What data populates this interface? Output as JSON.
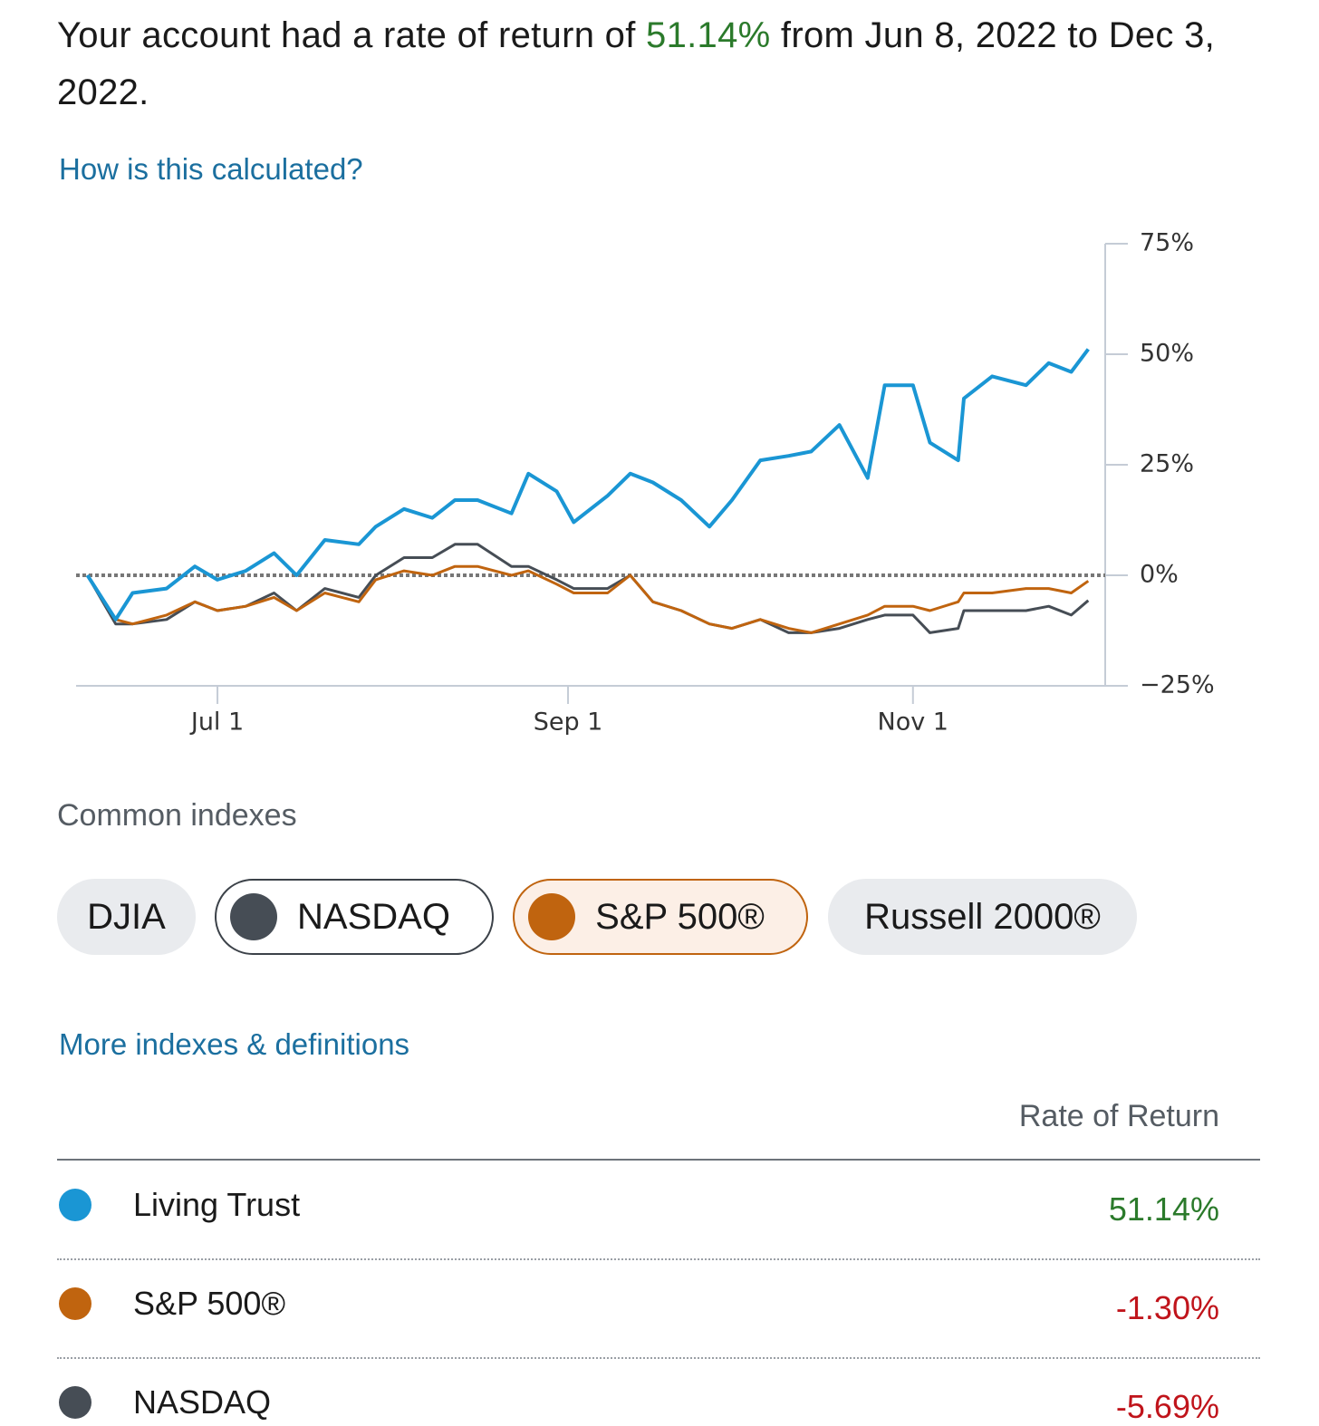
{
  "header": {
    "before": "Your account had a rate of return of ",
    "rate": "51.14%",
    "after": " from Jun 8, 2022 to Dec 3, 2022."
  },
  "calc_link": "How is this calculated?",
  "chart_data": {
    "type": "line",
    "x": [
      "2022-06-08",
      "2022-06-13",
      "2022-06-16",
      "2022-06-22",
      "2022-06-27",
      "2022-07-01",
      "2022-07-06",
      "2022-07-11",
      "2022-07-15",
      "2022-07-20",
      "2022-07-26",
      "2022-07-29",
      "2022-08-03",
      "2022-08-08",
      "2022-08-12",
      "2022-08-16",
      "2022-08-22",
      "2022-08-25",
      "2022-08-30",
      "2022-09-02",
      "2022-09-08",
      "2022-09-12",
      "2022-09-16",
      "2022-09-21",
      "2022-09-26",
      "2022-09-30",
      "2022-10-05",
      "2022-10-10",
      "2022-10-14",
      "2022-10-19",
      "2022-10-24",
      "2022-10-27",
      "2022-11-01",
      "2022-11-04",
      "2022-11-09",
      "2022-11-10",
      "2022-11-15",
      "2022-11-21",
      "2022-11-25",
      "2022-11-29",
      "2022-12-02"
    ],
    "series": [
      {
        "name": "Living Trust",
        "color": "#1a96d4",
        "values": [
          0,
          -10,
          -4,
          -3,
          2,
          -1,
          1,
          5,
          0,
          8,
          7,
          11,
          15,
          13,
          17,
          17,
          14,
          23,
          19,
          12,
          18,
          23,
          21,
          17,
          11,
          17,
          26,
          27,
          28,
          34,
          22,
          43,
          43,
          30,
          26,
          40,
          45,
          43,
          48,
          46,
          51.14
        ]
      },
      {
        "name": "S&P 500®",
        "color": "#c0640f",
        "values": [
          0,
          -10,
          -11,
          -9,
          -6,
          -8,
          -7,
          -5,
          -8,
          -4,
          -6,
          -1,
          1,
          0,
          2,
          2,
          0,
          1,
          -2,
          -4,
          -4,
          0,
          -6,
          -8,
          -11,
          -12,
          -10,
          -12,
          -13,
          -11,
          -9,
          -7,
          -7,
          -8,
          -6,
          -4,
          -4,
          -3,
          -3,
          -4,
          -1.3
        ]
      },
      {
        "name": "NASDAQ",
        "color": "#464d55",
        "values": [
          0,
          -11,
          -11,
          -10,
          -6,
          -8,
          -7,
          -4,
          -8,
          -3,
          -5,
          0,
          4,
          4,
          7,
          7,
          2,
          2,
          -1,
          -3,
          -3,
          0,
          -6,
          -8,
          -11,
          -12,
          -10,
          -13,
          -13,
          -12,
          -10,
          -9,
          -9,
          -13,
          -12,
          -8,
          -8,
          -8,
          -7,
          -9,
          -5.69
        ]
      }
    ],
    "xlim": [
      "2022-06-06",
      "2022-12-05"
    ],
    "xticks": [
      {
        "value": "2022-07-01",
        "label": "Jul 1"
      },
      {
        "value": "2022-09-01",
        "label": "Sep 1"
      },
      {
        "value": "2022-11-01",
        "label": "Nov 1"
      }
    ],
    "ylim": [
      -25,
      75
    ],
    "yticks": [
      {
        "value": -25,
        "label": "−25%"
      },
      {
        "value": 0,
        "label": "0%"
      },
      {
        "value": 25,
        "label": "25%"
      },
      {
        "value": 50,
        "label": "50%"
      },
      {
        "value": 75,
        "label": "75%"
      }
    ],
    "reference_line": 0
  },
  "indexes_heading": "Common indexes",
  "index_buttons": [
    {
      "label": "DJIA",
      "selected": false
    },
    {
      "label": "NASDAQ",
      "selected": true,
      "color": "#464d55",
      "border": "#3c4249",
      "background": "#ffffff"
    },
    {
      "label": "S&P 500®",
      "selected": true,
      "color": "#c0640f",
      "border": "#c0640f",
      "background": "#fcefe6"
    },
    {
      "label": "Russell 2000®",
      "selected": false
    }
  ],
  "more_link": "More indexes & definitions",
  "table": {
    "header": "Rate of Return",
    "rows": [
      {
        "name": "Living Trust",
        "color": "#1a96d4",
        "value": "51.14%",
        "value_color": "#2b7a2b"
      },
      {
        "name": "S&P 500®",
        "color": "#c0640f",
        "value": "-1.30%",
        "value_color": "#c0141b"
      },
      {
        "name": "NASDAQ",
        "color": "#464d55",
        "value": "-5.69%",
        "value_color": "#c0141b"
      }
    ]
  }
}
